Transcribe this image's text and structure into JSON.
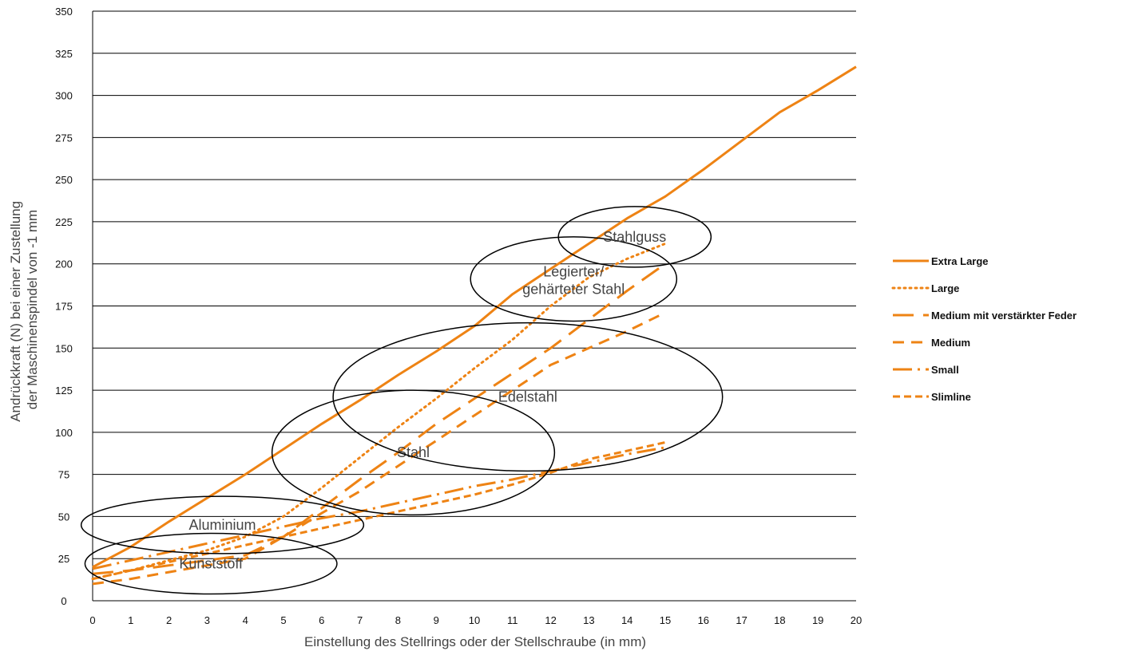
{
  "chart_data": {
    "type": "line",
    "title": "",
    "xlabel": "Einstellung des Stellrings oder der Stellschraube (in mm)",
    "ylabel_lines": [
      "Andrückkraft (N) bei einer Zustellung",
      "der Maschinenspindel von -1 mm"
    ],
    "xlim": [
      0,
      20
    ],
    "ylim": [
      0,
      350
    ],
    "x_ticks": [
      0,
      1,
      2,
      3,
      4,
      5,
      6,
      7,
      8,
      9,
      10,
      11,
      12,
      13,
      14,
      15,
      16,
      17,
      18,
      19,
      20
    ],
    "y_ticks": [
      0,
      25,
      50,
      75,
      100,
      125,
      150,
      175,
      200,
      225,
      250,
      275,
      300,
      325,
      350
    ],
    "grid": "horizontal",
    "legend_position": "right",
    "color": "#EE8314",
    "series": [
      {
        "name": "Extra Large",
        "style": "solid",
        "points": [
          [
            0,
            20
          ],
          [
            1,
            32
          ],
          [
            2,
            47
          ],
          [
            3,
            61
          ],
          [
            4,
            75
          ],
          [
            5,
            90
          ],
          [
            6,
            105
          ],
          [
            7,
            119
          ],
          [
            8,
            134
          ],
          [
            9,
            148
          ],
          [
            10,
            163
          ],
          [
            11,
            182
          ],
          [
            12,
            197
          ],
          [
            13,
            212
          ],
          [
            14,
            227
          ],
          [
            15,
            240
          ],
          [
            16,
            256
          ],
          [
            17,
            273
          ],
          [
            18,
            290
          ],
          [
            19,
            303
          ],
          [
            20,
            317
          ]
        ]
      },
      {
        "name": "Large",
        "style": "dotted",
        "points": [
          [
            0,
            13
          ],
          [
            1,
            18
          ],
          [
            2,
            24
          ],
          [
            3,
            30
          ],
          [
            4,
            38
          ],
          [
            5,
            50
          ],
          [
            6,
            67
          ],
          [
            7,
            85
          ],
          [
            8,
            103
          ],
          [
            9,
            120
          ],
          [
            10,
            138
          ],
          [
            11,
            155
          ],
          [
            12,
            175
          ],
          [
            13,
            192
          ],
          [
            14,
            203
          ],
          [
            15,
            212
          ]
        ]
      },
      {
        "name": "Medium mit verstärkter Feder",
        "style": "longdash",
        "points": [
          [
            0,
            16
          ],
          [
            1,
            18
          ],
          [
            2,
            21
          ],
          [
            3,
            24
          ],
          [
            4,
            27
          ],
          [
            5,
            38
          ],
          [
            6,
            55
          ],
          [
            7,
            72
          ],
          [
            8,
            88
          ],
          [
            9,
            105
          ],
          [
            10,
            120
          ],
          [
            11,
            135
          ],
          [
            12,
            150
          ],
          [
            13,
            167
          ],
          [
            14,
            184
          ],
          [
            15,
            200
          ]
        ]
      },
      {
        "name": "Medium",
        "style": "dash",
        "points": [
          [
            0,
            10
          ],
          [
            1,
            13
          ],
          [
            2,
            17
          ],
          [
            3,
            21
          ],
          [
            4,
            25
          ],
          [
            5,
            38
          ],
          [
            6,
            52
          ],
          [
            7,
            65
          ],
          [
            8,
            80
          ],
          [
            9,
            95
          ],
          [
            10,
            110
          ],
          [
            11,
            125
          ],
          [
            12,
            140
          ],
          [
            13,
            150
          ],
          [
            14,
            160
          ],
          [
            15,
            171
          ]
        ]
      },
      {
        "name": "Small",
        "style": "dashdot",
        "points": [
          [
            0,
            19
          ],
          [
            1,
            24
          ],
          [
            2,
            29
          ],
          [
            3,
            34
          ],
          [
            4,
            39
          ],
          [
            5,
            44
          ],
          [
            6,
            49
          ],
          [
            7,
            53
          ],
          [
            8,
            58
          ],
          [
            9,
            63
          ],
          [
            10,
            68
          ],
          [
            11,
            72
          ],
          [
            12,
            77
          ],
          [
            13,
            82
          ],
          [
            14,
            87
          ],
          [
            15,
            91
          ]
        ]
      },
      {
        "name": "Slimline",
        "style": "shortdash",
        "points": [
          [
            0,
            13
          ],
          [
            1,
            18
          ],
          [
            2,
            23
          ],
          [
            3,
            28
          ],
          [
            4,
            33
          ],
          [
            5,
            38
          ],
          [
            6,
            43
          ],
          [
            7,
            48
          ],
          [
            8,
            53
          ],
          [
            9,
            58
          ],
          [
            10,
            63
          ],
          [
            11,
            69
          ],
          [
            12,
            76
          ],
          [
            13,
            84
          ],
          [
            14,
            89
          ],
          [
            15,
            94
          ]
        ]
      }
    ],
    "regions": [
      {
        "label": "Kunststoff",
        "cx": 3.1,
        "cy": 22,
        "rx": 3.3,
        "ry": 18
      },
      {
        "label": "Aluminium",
        "cx": 3.4,
        "cy": 45,
        "rx": 3.7,
        "ry": 17
      },
      {
        "label": "Stahl",
        "cx": 8.4,
        "cy": 88,
        "rx": 3.7,
        "ry": 37
      },
      {
        "label": "Edelstahl",
        "cx": 11.4,
        "cy": 121,
        "rx": 5.1,
        "ry": 44
      },
      {
        "label": "Legierter/",
        "label2": "gehärteter Stahl",
        "cx": 12.6,
        "cy": 191,
        "rx": 2.7,
        "ry": 25
      },
      {
        "label": "Stahlguss",
        "cx": 14.2,
        "cy": 216,
        "rx": 2.0,
        "ry": 18
      }
    ]
  }
}
